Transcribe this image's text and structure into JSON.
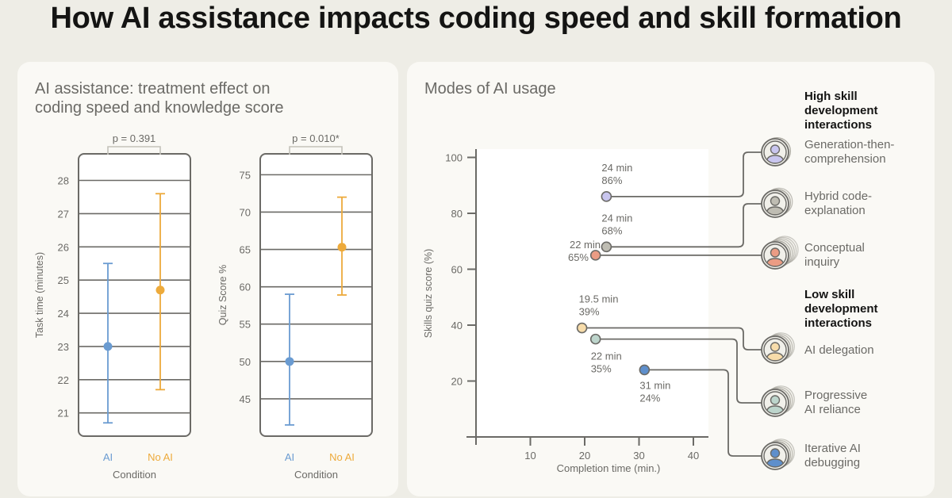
{
  "page": {
    "title": "How AI assistance impacts coding speed and skill formation"
  },
  "left_panel": {
    "title_line1": "AI assistance: treatment effect on",
    "title_line2": "coding speed and knowledge score"
  },
  "right_panel": {
    "title": "Modes of AI usage",
    "high_group_label": [
      "High skill",
      "development",
      "interactions"
    ],
    "low_group_label": [
      "Low skill",
      "development",
      "interactions"
    ]
  },
  "colors": {
    "ai": "#6a9bd1",
    "no_ai": "#edaa3b",
    "axis": "#6b6a66",
    "text_muted": "#6b6a66",
    "panel_bg": "#faf9f5",
    "page_bg": "#eeede6"
  },
  "chart_data": [
    {
      "type": "scatter",
      "subtype": "errorbar",
      "title": "Task time",
      "xlabel": "Condition",
      "ylabel": "Task time (minutes)",
      "categories": [
        "AI",
        "No AI"
      ],
      "yticks": [
        21,
        22,
        23,
        24,
        25,
        26,
        27,
        28
      ],
      "ylim": [
        20.3,
        28.8
      ],
      "grid": true,
      "annotation": "p = 0.391",
      "series": [
        {
          "name": "AI",
          "mean": 23.0,
          "ci_low": 20.7,
          "ci_high": 25.5,
          "color": "#6a9bd1"
        },
        {
          "name": "No AI",
          "mean": 24.7,
          "ci_low": 21.7,
          "ci_high": 27.6,
          "color": "#edaa3b"
        }
      ]
    },
    {
      "type": "scatter",
      "subtype": "errorbar",
      "title": "Quiz score",
      "xlabel": "Condition",
      "ylabel": "Quiz Score %",
      "categories": [
        "AI",
        "No AI"
      ],
      "yticks": [
        45,
        50,
        55,
        60,
        65,
        70,
        75
      ],
      "ylim": [
        40,
        77.8
      ],
      "grid": true,
      "annotation": "p = 0.010*",
      "series": [
        {
          "name": "AI",
          "mean": 50.0,
          "ci_low": 41.5,
          "ci_high": 59.0,
          "color": "#6a9bd1"
        },
        {
          "name": "No AI",
          "mean": 65.3,
          "ci_low": 58.9,
          "ci_high": 72.0,
          "color": "#edaa3b"
        }
      ]
    },
    {
      "type": "scatter",
      "title": "Modes of AI usage",
      "xlabel": "Completion time (min.)",
      "ylabel": "Skills quiz score (%)",
      "xticks": [
        10,
        20,
        30,
        40
      ],
      "yticks": [
        20,
        40,
        60,
        80,
        100
      ],
      "xlim": [
        0,
        42
      ],
      "ylim": [
        0,
        103
      ],
      "grid": false,
      "legend": "right",
      "points": [
        {
          "name": "Generation-then-comprehension",
          "label": [
            "Generation-then-",
            "comprehension"
          ],
          "group": "high",
          "x": 24,
          "y": 86,
          "time_label": "24 min",
          "score_label": "86%",
          "color": "#c9c6ef"
        },
        {
          "name": "Hybrid code-explanation",
          "label": [
            "Hybrid code-",
            "explanation"
          ],
          "group": "high",
          "x": 24,
          "y": 68,
          "time_label": "24 min",
          "score_label": "68%",
          "color": "#bfbdb3"
        },
        {
          "name": "Conceptual inquiry",
          "label": [
            "Conceptual",
            "inquiry"
          ],
          "group": "high",
          "x": 22,
          "y": 65,
          "time_label": "22 min",
          "score_label": "65%",
          "color": "#eb9c84"
        },
        {
          "name": "AI delegation",
          "label": [
            "AI delegation"
          ],
          "group": "low",
          "x": 19.5,
          "y": 39,
          "time_label": "19.5 min",
          "score_label": "39%",
          "color": "#f7dcaa"
        },
        {
          "name": "Progressive AI reliance",
          "label": [
            "Progressive",
            "AI reliance"
          ],
          "group": "low",
          "x": 22,
          "y": 35,
          "time_label": "22 min",
          "score_label": "35%",
          "color": "#bdd5cc"
        },
        {
          "name": "Iterative AI debugging",
          "label": [
            "Iterative AI",
            "debugging"
          ],
          "group": "low",
          "x": 31,
          "y": 24,
          "time_label": "31 min",
          "score_label": "24%",
          "color": "#5e8fcc"
        }
      ]
    }
  ]
}
